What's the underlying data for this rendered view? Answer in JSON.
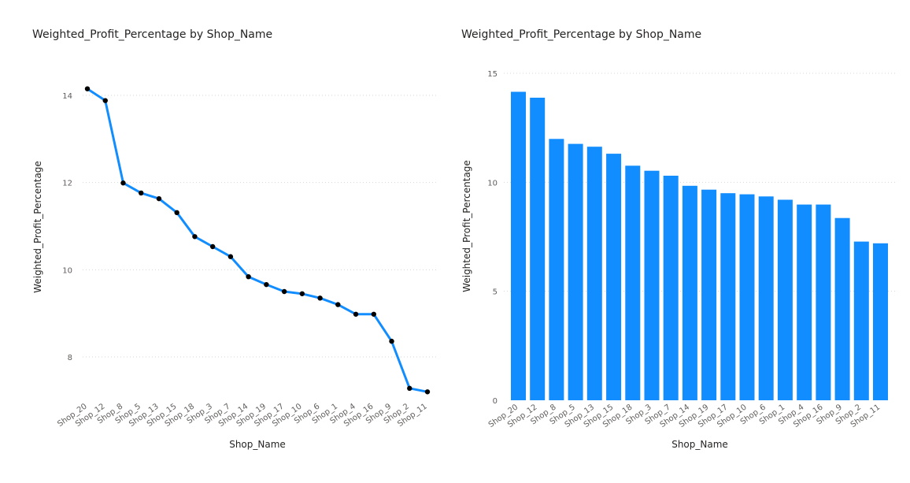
{
  "chart_data": [
    {
      "type": "line",
      "title": "Weighted_Profit_Percentage by Shop_Name",
      "xlabel": "Shop_Name",
      "ylabel": "Weighted_Profit_Percentage",
      "categories": [
        "Shop_20",
        "Shop_12",
        "Shop_8",
        "Shop_5",
        "Shop_13",
        "Shop_15",
        "Shop_18",
        "Shop_3",
        "Shop_7",
        "Shop_14",
        "Shop_19",
        "Shop_17",
        "Shop_10",
        "Shop_6",
        "Shop_1",
        "Shop_4",
        "Shop_16",
        "Shop_9",
        "Shop_2",
        "Shop_11"
      ],
      "values": [
        14.15,
        13.88,
        11.99,
        11.76,
        11.63,
        11.31,
        10.76,
        10.53,
        10.3,
        9.84,
        9.66,
        9.5,
        9.45,
        9.35,
        9.2,
        8.98,
        8.98,
        8.36,
        7.28,
        7.2
      ],
      "yticks": [
        8,
        10,
        12,
        14
      ],
      "ylim": [
        7.0,
        14.6
      ],
      "color": "#118DFF",
      "marker_color": "#000000",
      "grid": true
    },
    {
      "type": "bar",
      "title": "Weighted_Profit_Percentage by Shop_Name",
      "xlabel": "Shop_Name",
      "ylabel": "Weighted_Profit_Percentage",
      "categories": [
        "Shop_20",
        "Shop_12",
        "Shop_8",
        "Shop_5",
        "Shop_13",
        "Shop_15",
        "Shop_18",
        "Shop_3",
        "Shop_7",
        "Shop_14",
        "Shop_19",
        "Shop_17",
        "Shop_10",
        "Shop_6",
        "Shop_1",
        "Shop_4",
        "Shop_16",
        "Shop_9",
        "Shop_2",
        "Shop_11"
      ],
      "values": [
        14.15,
        13.88,
        11.99,
        11.76,
        11.63,
        11.31,
        10.76,
        10.53,
        10.3,
        9.84,
        9.66,
        9.5,
        9.45,
        9.35,
        9.2,
        8.98,
        8.98,
        8.36,
        7.28,
        7.2
      ],
      "yticks": [
        0,
        5,
        10,
        15
      ],
      "ylim": [
        0,
        15
      ],
      "color": "#118DFF",
      "grid": true
    }
  ]
}
